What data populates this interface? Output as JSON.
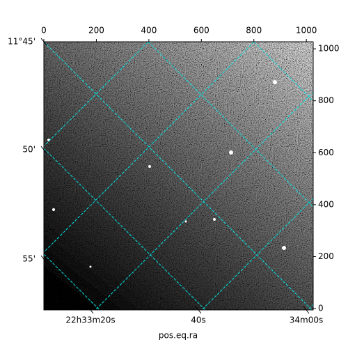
{
  "chart_data": {
    "type": "image",
    "xlabel": "pos.eq.ra",
    "xlim": [
      0,
      1026
    ],
    "xticks": [
      0,
      200,
      400,
      600,
      800,
      1000
    ],
    "ylim": [
      -5,
      1027
    ],
    "yticks": [
      0,
      200,
      400,
      600,
      800,
      1000
    ],
    "ra_ticks": [
      "22h33m20s",
      "40s",
      "34m00s"
    ],
    "dec_ticks": [
      "11°45'",
      "50'",
      "55'"
    ],
    "grid_color": "#00e5e5"
  }
}
